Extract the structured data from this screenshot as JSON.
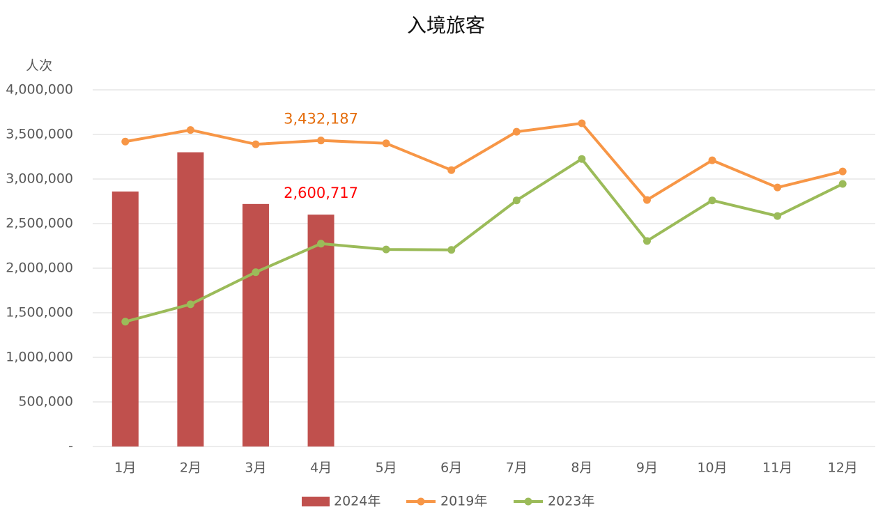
{
  "chart_data": {
    "type": "bar",
    "title": "入境旅客",
    "y_label": "人次",
    "categories": [
      "1月",
      "2月",
      "3月",
      "4月",
      "5月",
      "6月",
      "7月",
      "8月",
      "9月",
      "10月",
      "11月",
      "12月"
    ],
    "ylim": [
      0,
      4000000
    ],
    "yticks": [
      {
        "value": 0,
        "label": "-"
      },
      {
        "value": 500000,
        "label": "500,000"
      },
      {
        "value": 1000000,
        "label": "1,000,000"
      },
      {
        "value": 1500000,
        "label": "1,500,000"
      },
      {
        "value": 2000000,
        "label": "2,000,000"
      },
      {
        "value": 2500000,
        "label": "2,500,000"
      },
      {
        "value": 3000000,
        "label": "3,000,000"
      },
      {
        "value": 3500000,
        "label": "3,500,000"
      },
      {
        "value": 4000000,
        "label": "4,000,000"
      }
    ],
    "grid": true,
    "legend": "bottom",
    "series": [
      {
        "name": "2024年",
        "type": "bar",
        "color": "#c0504d",
        "label_color": "#ff0000",
        "values": [
          2860000,
          3300000,
          2720000,
          2600717,
          null,
          null,
          null,
          null,
          null,
          null,
          null,
          null
        ],
        "value_labels": [
          null,
          null,
          null,
          "2,600,717",
          null,
          null,
          null,
          null,
          null,
          null,
          null,
          null
        ]
      },
      {
        "name": "2019年",
        "type": "line",
        "color": "#f79646",
        "label_color": "#e46c0a",
        "values": [
          3420000,
          3550000,
          3390000,
          3432187,
          3400000,
          3100000,
          3530000,
          3625000,
          2765000,
          3210000,
          2905000,
          3085000
        ],
        "value_labels": [
          null,
          null,
          null,
          "3,432,187",
          null,
          null,
          null,
          null,
          null,
          null,
          null,
          null
        ]
      },
      {
        "name": "2023年",
        "type": "line",
        "color": "#9bbb59",
        "values": [
          1400000,
          1595000,
          1955000,
          2275000,
          2210000,
          2205000,
          2760000,
          3225000,
          2305000,
          2760000,
          2585000,
          2945000
        ]
      }
    ]
  }
}
